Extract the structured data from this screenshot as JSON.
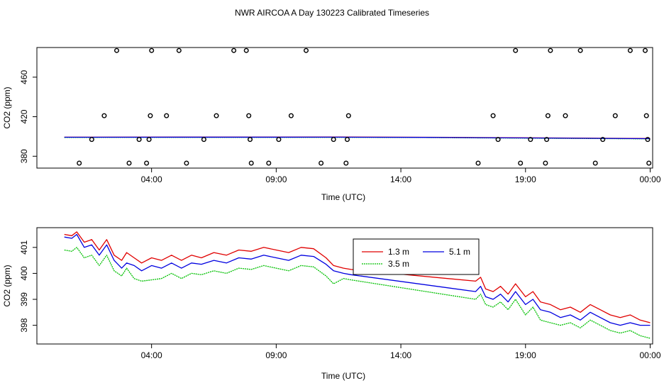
{
  "page_title": "NWR AIRCOA A  Day 130223  Calibrated Timeseries",
  "colors": {
    "s13": "#e00000",
    "s35": "#00c000",
    "s51": "#0000e0",
    "axis": "#000000"
  },
  "chart_data": [
    {
      "type": "scatter",
      "xlabel": "Time (UTC)",
      "ylabel": "CO2 (ppm)",
      "xlim": [
        -0.6,
        24.1
      ],
      "ylim": [
        368,
        490
      ],
      "xticks": [
        {
          "v": 4,
          "label": "04:00"
        },
        {
          "v": 9,
          "label": "09:00"
        },
        {
          "v": 14,
          "label": "14:00"
        },
        {
          "v": 19,
          "label": "19:00"
        },
        {
          "v": 24,
          "label": "00:00"
        }
      ],
      "yticks": [
        {
          "v": 380,
          "label": "380"
        },
        {
          "v": 420,
          "label": "420"
        },
        {
          "v": 460,
          "label": "460"
        }
      ],
      "flat_lines": [
        {
          "name": "1.3 m",
          "color": "s13",
          "x": [
            0.5,
            11.5,
            15,
            17,
            24
          ],
          "y": [
            399.3,
            399.4,
            399.2,
            398.9,
            397.9
          ]
        },
        {
          "name": "3.5 m",
          "color": "s35",
          "x": [
            0.5,
            11.5,
            15,
            17,
            24
          ],
          "y": [
            399.0,
            399.1,
            398.9,
            398.6,
            397.6
          ]
        },
        {
          "name": "5.1 m",
          "color": "s51",
          "x": [
            0.5,
            11.5,
            15,
            17,
            24
          ],
          "y": [
            399.2,
            399.3,
            399.1,
            398.8,
            397.8
          ]
        }
      ],
      "points": [
        [
          1.1,
          373
        ],
        [
          1.6,
          397
        ],
        [
          2.1,
          421
        ],
        [
          2.6,
          487
        ],
        [
          3.1,
          373
        ],
        [
          3.5,
          397
        ],
        [
          3.8,
          373
        ],
        [
          3.9,
          397
        ],
        [
          3.95,
          421
        ],
        [
          4.0,
          487
        ],
        [
          4.6,
          421
        ],
        [
          5.1,
          487
        ],
        [
          5.4,
          373
        ],
        [
          6.1,
          397
        ],
        [
          6.6,
          421
        ],
        [
          7.3,
          487
        ],
        [
          7.8,
          487
        ],
        [
          7.9,
          421
        ],
        [
          7.95,
          397
        ],
        [
          8.0,
          373
        ],
        [
          8.7,
          373
        ],
        [
          9.1,
          397
        ],
        [
          9.6,
          421
        ],
        [
          10.2,
          487
        ],
        [
          10.8,
          373
        ],
        [
          11.3,
          397
        ],
        [
          11.8,
          373
        ],
        [
          11.85,
          397
        ],
        [
          11.9,
          421
        ],
        [
          17.1,
          373
        ],
        [
          17.7,
          421
        ],
        [
          17.9,
          397
        ],
        [
          18.6,
          487
        ],
        [
          18.8,
          373
        ],
        [
          19.2,
          397
        ],
        [
          19.8,
          373
        ],
        [
          19.85,
          397
        ],
        [
          19.9,
          421
        ],
        [
          20.0,
          487
        ],
        [
          20.6,
          421
        ],
        [
          21.2,
          487
        ],
        [
          21.8,
          373
        ],
        [
          22.1,
          397
        ],
        [
          22.6,
          421
        ],
        [
          23.2,
          487
        ],
        [
          23.8,
          487
        ],
        [
          23.85,
          421
        ],
        [
          23.9,
          397
        ],
        [
          23.95,
          373
        ]
      ]
    },
    {
      "type": "line",
      "xlabel": "Time (UTC)",
      "ylabel": "CO2 (ppm)",
      "xlim": [
        -0.6,
        24.1
      ],
      "ylim": [
        397.28,
        401.76
      ],
      "xticks": [
        {
          "v": 4,
          "label": "04:00"
        },
        {
          "v": 9,
          "label": "09:00"
        },
        {
          "v": 14,
          "label": "14:00"
        },
        {
          "v": 19,
          "label": "19:00"
        },
        {
          "v": 24,
          "label": "00:00"
        }
      ],
      "yticks": [
        {
          "v": 398,
          "label": "398"
        },
        {
          "v": 399,
          "label": "399"
        },
        {
          "v": 400,
          "label": "400"
        },
        {
          "v": 401,
          "label": "401"
        }
      ],
      "legend": {
        "position": "top-center"
      },
      "series": [
        {
          "name": "1.3 m",
          "color": "s13",
          "x": [
            0.5,
            0.8,
            1.0,
            1.3,
            1.6,
            1.9,
            2.2,
            2.5,
            2.8,
            3.0,
            3.3,
            3.6,
            4.0,
            4.4,
            4.8,
            5.2,
            5.6,
            6.0,
            6.5,
            7.0,
            7.5,
            8.0,
            8.5,
            9.0,
            9.5,
            10.0,
            10.5,
            11.0,
            11.3,
            11.7,
            12.0,
            17.0,
            17.2,
            17.4,
            17.7,
            18.0,
            18.3,
            18.6,
            19.0,
            19.3,
            19.6,
            20.0,
            20.4,
            20.8,
            21.2,
            21.6,
            22.0,
            22.4,
            22.8,
            23.2,
            23.6,
            24.0
          ],
          "y": [
            401.5,
            401.45,
            401.6,
            401.2,
            401.3,
            400.9,
            401.3,
            400.7,
            400.5,
            400.8,
            400.6,
            400.4,
            400.6,
            400.5,
            400.7,
            400.5,
            400.7,
            400.6,
            400.8,
            400.7,
            400.9,
            400.85,
            401.0,
            400.9,
            400.8,
            401.0,
            400.95,
            400.6,
            400.3,
            400.2,
            400.15,
            399.7,
            399.85,
            399.4,
            399.3,
            399.5,
            399.2,
            399.6,
            399.1,
            399.3,
            398.9,
            398.8,
            398.6,
            398.7,
            398.5,
            398.8,
            398.6,
            398.4,
            398.3,
            398.4,
            398.2,
            398.1
          ]
        },
        {
          "name": "3.5 m",
          "color": "s35",
          "x": [
            0.5,
            0.8,
            1.0,
            1.3,
            1.6,
            1.9,
            2.2,
            2.5,
            2.8,
            3.0,
            3.3,
            3.6,
            4.0,
            4.4,
            4.8,
            5.2,
            5.6,
            6.0,
            6.5,
            7.0,
            7.5,
            8.0,
            8.5,
            9.0,
            9.5,
            10.0,
            10.5,
            11.0,
            11.3,
            11.7,
            12.0,
            17.0,
            17.2,
            17.4,
            17.7,
            18.0,
            18.3,
            18.6,
            19.0,
            19.3,
            19.6,
            20.0,
            20.4,
            20.8,
            21.2,
            21.6,
            22.0,
            22.4,
            22.8,
            23.2,
            23.6,
            24.0
          ],
          "y": [
            400.9,
            400.85,
            401.0,
            400.6,
            400.7,
            400.3,
            400.7,
            400.1,
            399.9,
            400.2,
            399.8,
            399.7,
            399.75,
            399.8,
            400.0,
            399.8,
            400.0,
            399.95,
            400.1,
            400.0,
            400.2,
            400.15,
            400.3,
            400.2,
            400.1,
            400.3,
            400.25,
            399.9,
            399.6,
            399.8,
            399.75,
            399.0,
            399.2,
            398.8,
            398.7,
            398.9,
            398.6,
            399.0,
            398.4,
            398.7,
            398.2,
            398.1,
            398.0,
            398.1,
            397.9,
            398.2,
            398.0,
            397.8,
            397.7,
            397.8,
            397.6,
            397.5
          ]
        },
        {
          "name": "5.1 m",
          "color": "s51",
          "x": [
            0.5,
            0.8,
            1.0,
            1.3,
            1.6,
            1.9,
            2.2,
            2.5,
            2.8,
            3.0,
            3.3,
            3.6,
            4.0,
            4.4,
            4.8,
            5.2,
            5.6,
            6.0,
            6.5,
            7.0,
            7.5,
            8.0,
            8.5,
            9.0,
            9.5,
            10.0,
            10.5,
            11.0,
            11.3,
            11.7,
            12.0,
            17.0,
            17.2,
            17.4,
            17.7,
            18.0,
            18.3,
            18.6,
            19.0,
            19.3,
            19.6,
            20.0,
            20.4,
            20.8,
            21.2,
            21.6,
            22.0,
            22.4,
            22.8,
            23.2,
            23.6,
            24.0
          ],
          "y": [
            401.4,
            401.35,
            401.5,
            401.0,
            401.1,
            400.7,
            401.1,
            400.5,
            400.2,
            400.4,
            400.3,
            400.1,
            400.3,
            400.2,
            400.4,
            400.2,
            400.4,
            400.35,
            400.5,
            400.4,
            400.6,
            400.55,
            400.7,
            400.6,
            400.5,
            400.7,
            400.65,
            400.35,
            400.1,
            400.0,
            399.95,
            399.3,
            399.5,
            399.1,
            399.0,
            399.2,
            398.9,
            399.3,
            398.8,
            399.0,
            398.6,
            398.5,
            398.3,
            398.4,
            398.2,
            398.5,
            398.3,
            398.1,
            398.0,
            398.1,
            398.0,
            398.0
          ]
        }
      ]
    }
  ]
}
